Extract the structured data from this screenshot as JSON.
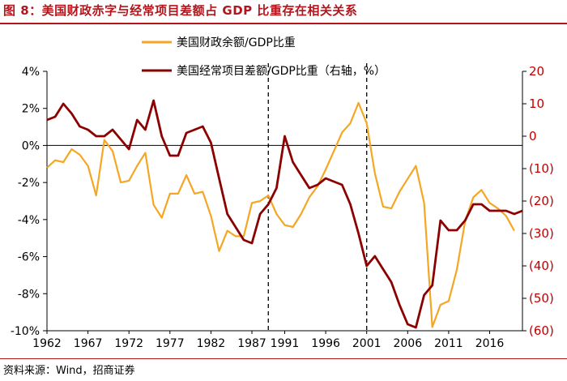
{
  "title": "图 8：美国财政赤字与经常项目差额占 GDP 比重存在相关关系",
  "source": "资料来源：Wind，招商证券",
  "chart_data": {
    "type": "line",
    "title": "美国财政赤字与经常项目差额占 GDP 比重存在相关关系",
    "legend_position": "top",
    "x": [
      1962,
      1963,
      1964,
      1965,
      1966,
      1967,
      1968,
      1969,
      1970,
      1971,
      1972,
      1973,
      1974,
      1975,
      1976,
      1977,
      1978,
      1979,
      1980,
      1981,
      1982,
      1983,
      1984,
      1985,
      1986,
      1987,
      1988,
      1989,
      1990,
      1991,
      1992,
      1993,
      1994,
      1995,
      1996,
      1997,
      1998,
      1999,
      2000,
      2001,
      2002,
      2003,
      2004,
      2005,
      2006,
      2007,
      2008,
      2009,
      2010,
      2011,
      2012,
      2013,
      2014,
      2015,
      2016,
      2017,
      2018,
      2019,
      2020
    ],
    "x_tick_labels": [
      "1962",
      "1967",
      "1972",
      "1977",
      "1982",
      "1987",
      "1991",
      "1996",
      "2001",
      "2006",
      "2011",
      "2016"
    ],
    "left_axis": {
      "ylim": [
        -10,
        4
      ],
      "ticks": [
        "4%",
        "2%",
        "0%",
        "-2%",
        "-4%",
        "-6%",
        "-8%",
        "-10%"
      ]
    },
    "right_axis": {
      "ylim": [
        -60,
        20
      ],
      "ticks": [
        "20",
        "10",
        "0",
        "(10)",
        "(20)",
        "(30)",
        "(40)",
        "(50)",
        "(60)"
      ]
    },
    "vlines": [
      1989,
      2001
    ],
    "series": [
      {
        "name": "美国财政余额/GDP比重",
        "axis": "left",
        "color": "#f5a623",
        "values": [
          -1.2,
          -0.8,
          -0.9,
          -0.2,
          -0.5,
          -1.1,
          -2.7,
          0.3,
          -0.3,
          -2.0,
          -1.9,
          -1.1,
          -0.4,
          -3.2,
          -3.9,
          -2.6,
          -2.6,
          -1.6,
          -2.6,
          -2.5,
          -3.8,
          -5.7,
          -4.6,
          -4.9,
          -4.9,
          -3.1,
          -3.0,
          -2.7,
          -3.7,
          -4.3,
          -4.4,
          -3.7,
          -2.8,
          -2.2,
          -1.3,
          -0.3,
          0.7,
          1.2,
          2.3,
          1.2,
          -1.5,
          -3.3,
          -3.4,
          -2.5,
          -1.8,
          -1.1,
          -3.1,
          -9.8,
          -8.6,
          -8.4,
          -6.7,
          -4.1,
          -2.8,
          -2.4,
          -3.1,
          -3.4,
          -3.8,
          -4.6,
          null
        ]
      },
      {
        "name": "美国经常项目差额/GDP比重（右轴，%）",
        "axis": "right",
        "color": "#8b0000",
        "values": [
          5,
          6,
          10,
          7,
          3,
          2,
          0,
          0,
          2,
          -1,
          -4,
          5,
          2,
          11,
          0,
          -6,
          -6,
          1,
          2,
          3,
          -2,
          -13,
          -24,
          -28,
          -32,
          -33,
          -24,
          -21,
          -16,
          0,
          -8,
          -12,
          -16,
          -15,
          -13,
          -14,
          -15,
          -21,
          -30,
          -40,
          -37,
          -41,
          -45,
          -52,
          -58,
          -59,
          -49,
          -46,
          -26,
          -29,
          -29,
          -26,
          -21,
          -21,
          -23,
          -23,
          -23,
          -24,
          -23
        ]
      }
    ]
  }
}
